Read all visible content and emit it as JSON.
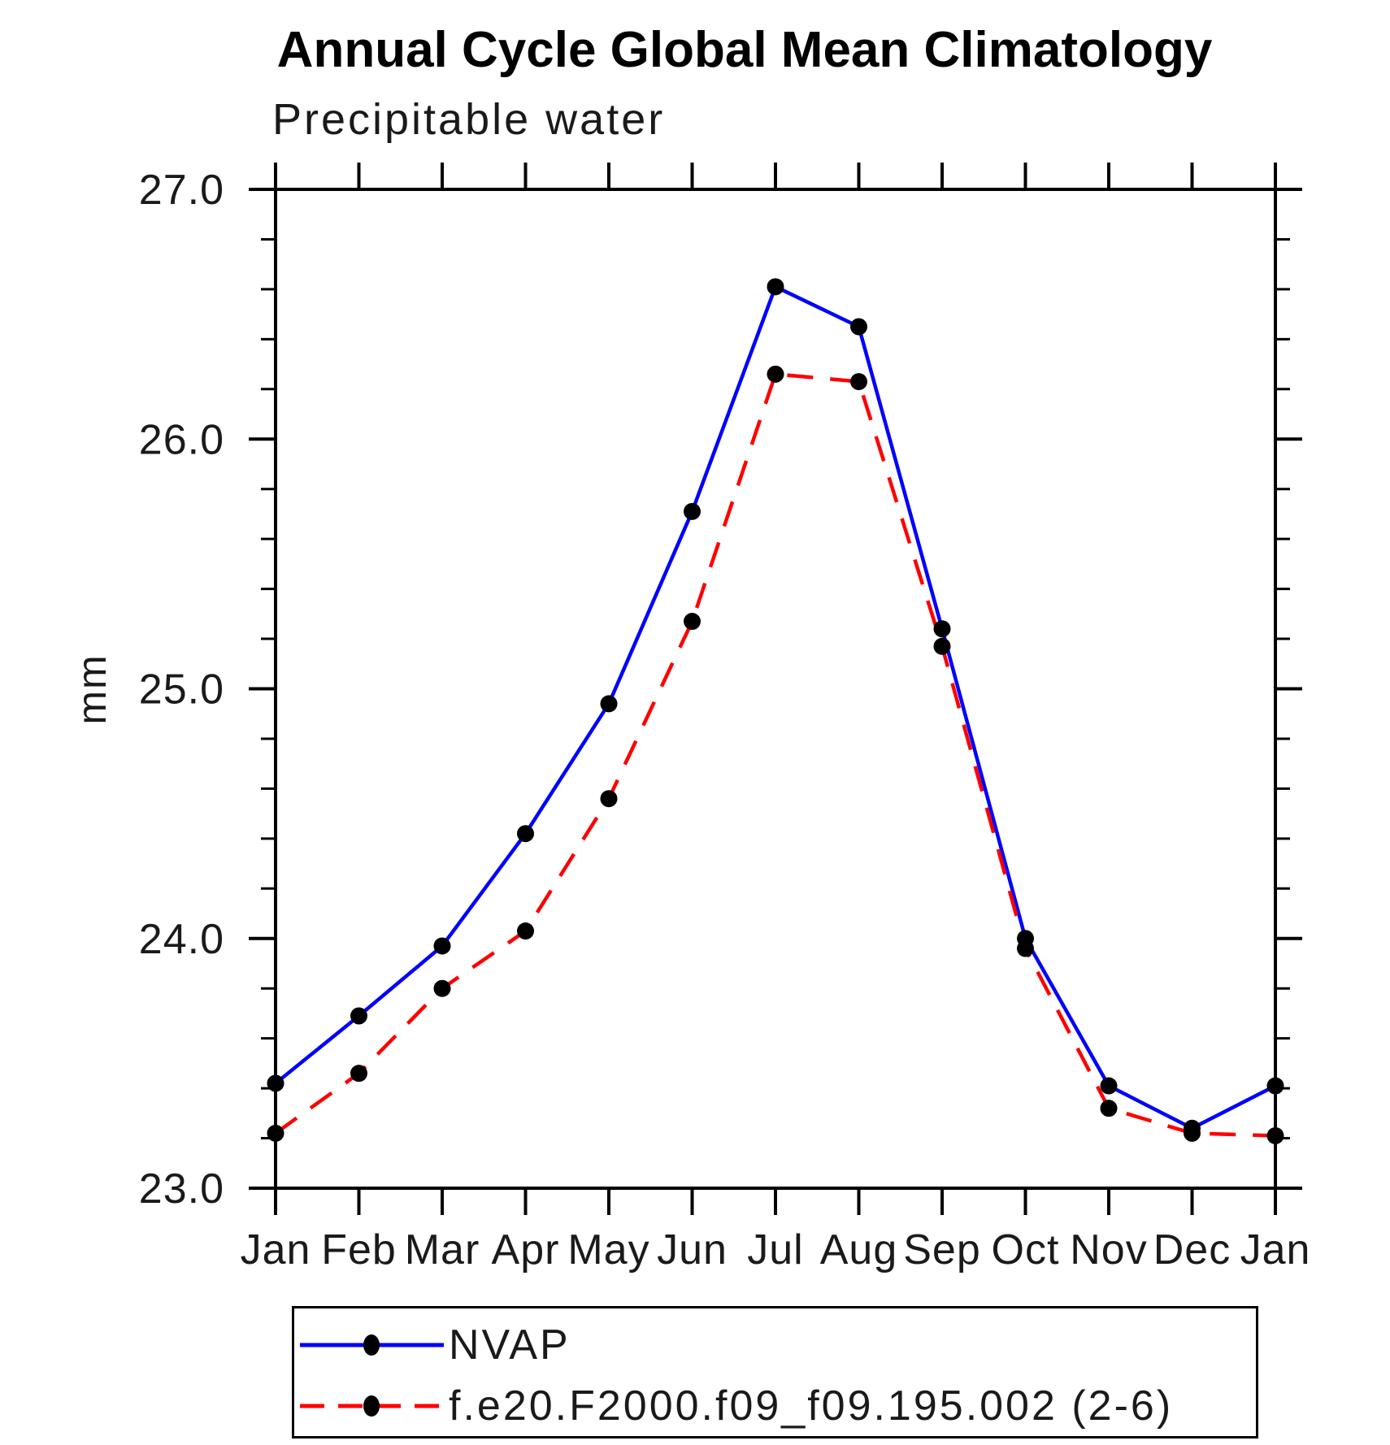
{
  "title": "Annual Cycle Global Mean Climatology",
  "subtitle": "Precipitable water",
  "y_axis_label": "mm",
  "legend": {
    "position": "bottom-left",
    "items": [
      {
        "label": "NVAP"
      },
      {
        "label": "f.e20.F2000.f09_f09.195.002 (2-6)"
      }
    ]
  },
  "chart_data": {
    "type": "line",
    "title": "Annual Cycle Global Mean Climatology",
    "subtitle": "Precipitable water",
    "xlabel": "",
    "ylabel": "mm",
    "ylim": [
      23.0,
      27.0
    ],
    "ytick_values": [
      23.0,
      24.0,
      25.0,
      26.0,
      27.0
    ],
    "ytick_labels": [
      "23.0",
      "24.0",
      "25.0",
      "26.0",
      "27.0"
    ],
    "ytick_minor_step": 0.2,
    "categories": [
      "Jan",
      "Feb",
      "Mar",
      "Apr",
      "May",
      "Jun",
      "Jul",
      "Aug",
      "Sep",
      "Oct",
      "Nov",
      "Dec",
      "Jan"
    ],
    "grid": false,
    "legend_position": "bottom-left",
    "axis_color": "#000000",
    "marker_shape": "filled-circle",
    "series": [
      {
        "name": "NVAP",
        "color": "#0000ff",
        "line_style": "solid",
        "marker_color": "#000000",
        "values": [
          23.42,
          23.69,
          23.97,
          24.42,
          24.94,
          25.71,
          26.61,
          26.45,
          25.24,
          24.0,
          23.41,
          23.24,
          23.41
        ]
      },
      {
        "name": "f.e20.F2000.f09_f09.195.002 (2-6)",
        "color": "#ff0000",
        "line_style": "dashed",
        "marker_color": "#000000",
        "values": [
          23.22,
          23.46,
          23.8,
          24.03,
          24.56,
          25.27,
          26.26,
          26.23,
          25.17,
          23.96,
          23.32,
          23.22,
          23.21
        ]
      }
    ]
  }
}
